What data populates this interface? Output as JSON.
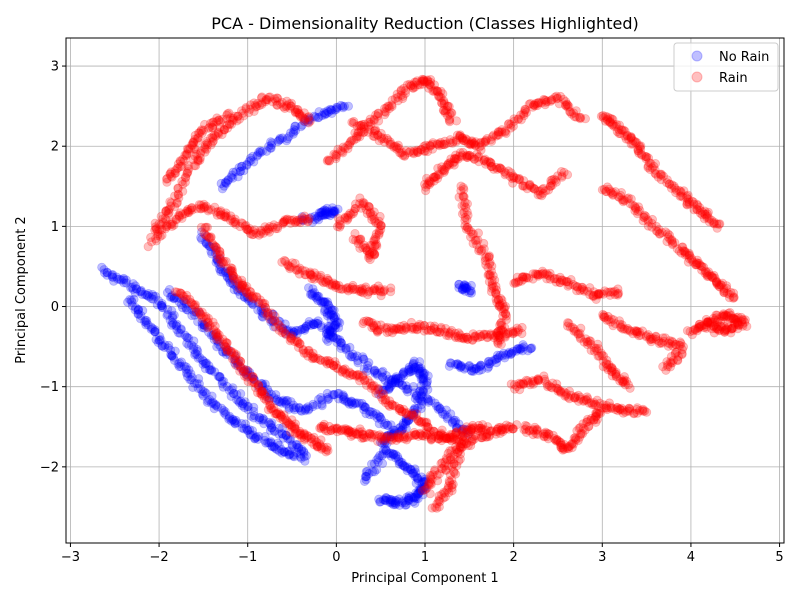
{
  "chart_data": {
    "type": "scatter",
    "title": "PCA - Dimensionality Reduction (Classes Highlighted)",
    "xlabel": "Principal Component 1",
    "ylabel": "Principal Component 2",
    "xlim": [
      -3.05,
      5.05
    ],
    "ylim": [
      -2.95,
      3.35
    ],
    "xticks": [
      -3,
      -2,
      -1,
      0,
      1,
      2,
      3,
      4,
      5
    ],
    "yticks": [
      -2,
      -1,
      0,
      1,
      2,
      3
    ],
    "xtick_labels": [
      "−3",
      "−2",
      "−1",
      "0",
      "1",
      "2",
      "3",
      "4",
      "5"
    ],
    "ytick_labels": [
      "−2",
      "−1",
      "0",
      "1",
      "2",
      "3"
    ],
    "grid": true,
    "legend_position": "top-right",
    "series": [
      {
        "name": "No Rain",
        "color": "#0000ff",
        "alpha": 0.25,
        "paths": [
          [
            [
              -2.65,
              0.45
            ],
            [
              -2.3,
              0.25
            ],
            [
              -2.0,
              0.05
            ],
            [
              -1.75,
              -0.3
            ],
            [
              -1.5,
              -0.7
            ],
            [
              -1.2,
              -1.05
            ],
            [
              -0.9,
              -1.35
            ],
            [
              -0.6,
              -1.6
            ],
            [
              -0.3,
              -1.9
            ]
          ],
          [
            [
              -2.35,
              0.1
            ],
            [
              -2.1,
              -0.25
            ],
            [
              -1.85,
              -0.6
            ],
            [
              -1.6,
              -0.95
            ],
            [
              -1.3,
              -1.3
            ],
            [
              -1.0,
              -1.55
            ],
            [
              -0.7,
              -1.75
            ],
            [
              -0.4,
              -1.9
            ]
          ],
          [
            [
              -1.9,
              0.2
            ],
            [
              -1.6,
              -0.1
            ],
            [
              -1.3,
              -0.5
            ],
            [
              -1.0,
              -0.85
            ],
            [
              -0.7,
              -1.15
            ],
            [
              -0.4,
              -1.3
            ],
            [
              0.0,
              -1.1
            ],
            [
              0.3,
              -1.25
            ],
            [
              0.6,
              -1.5
            ]
          ],
          [
            [
              -1.5,
              0.9
            ],
            [
              -1.3,
              0.5
            ],
            [
              -1.1,
              0.2
            ],
            [
              -0.8,
              -0.1
            ],
            [
              -0.5,
              -0.35
            ],
            [
              -0.2,
              -0.2
            ],
            [
              0.1,
              -0.5
            ],
            [
              0.4,
              -0.8
            ],
            [
              0.8,
              -1.0
            ],
            [
              1.2,
              -1.3
            ],
            [
              1.5,
              -1.6
            ]
          ],
          [
            [
              -1.3,
              1.5
            ],
            [
              -1.0,
              1.8
            ],
            [
              -0.6,
              2.1
            ],
            [
              -0.2,
              2.4
            ],
            [
              0.1,
              2.5
            ]
          ],
          [
            [
              -0.2,
              1.15
            ],
            [
              0.0,
              1.2
            ],
            [
              -0.4,
              1.05
            ]
          ],
          [
            [
              -0.3,
              0.2
            ],
            [
              -0.1,
              0.0
            ],
            [
              0.0,
              -0.2
            ],
            [
              -0.1,
              -0.4
            ]
          ],
          [
            [
              0.5,
              -2.4
            ],
            [
              0.7,
              -2.45
            ],
            [
              0.9,
              -2.4
            ],
            [
              1.0,
              -2.2
            ],
            [
              0.8,
              -2.0
            ],
            [
              0.55,
              -1.8
            ],
            [
              0.3,
              -2.2
            ]
          ],
          [
            [
              0.5,
              -1.7
            ],
            [
              0.7,
              -1.55
            ],
            [
              0.9,
              -1.3
            ],
            [
              1.0,
              -0.9
            ],
            [
              0.9,
              -0.7
            ],
            [
              0.7,
              -0.9
            ],
            [
              0.5,
              -1.1
            ]
          ],
          [
            [
              1.3,
              -0.7
            ],
            [
              1.6,
              -0.8
            ],
            [
              1.9,
              -0.6
            ],
            [
              2.2,
              -0.5
            ]
          ],
          [
            [
              1.4,
              0.25
            ],
            [
              1.5,
              0.2
            ]
          ]
        ]
      },
      {
        "name": "Rain",
        "color": "#ff0000",
        "alpha": 0.25,
        "paths": [
          [
            [
              -2.05,
              0.95
            ],
            [
              -1.85,
              1.3
            ],
            [
              -1.6,
              1.8
            ],
            [
              -1.4,
              2.1
            ],
            [
              -1.1,
              2.35
            ],
            [
              -0.8,
              2.6
            ],
            [
              -0.5,
              2.5
            ],
            [
              -0.3,
              2.3
            ]
          ],
          [
            [
              -2.1,
              0.8
            ],
            [
              -1.8,
              1.1
            ],
            [
              -1.5,
              1.25
            ],
            [
              -1.2,
              1.1
            ],
            [
              -0.9,
              0.9
            ],
            [
              -0.6,
              1.05
            ],
            [
              -0.3,
              1.1
            ]
          ],
          [
            [
              -1.9,
              1.55
            ],
            [
              -1.7,
              1.9
            ],
            [
              -1.5,
              2.2
            ],
            [
              -1.2,
              2.4
            ]
          ],
          [
            [
              -1.8,
              0.2
            ],
            [
              -1.5,
              -0.1
            ],
            [
              -1.3,
              -0.4
            ],
            [
              -1.1,
              -0.7
            ],
            [
              -0.9,
              -1.0
            ],
            [
              -0.7,
              -1.3
            ],
            [
              -0.5,
              -1.5
            ],
            [
              -0.3,
              -1.65
            ],
            [
              -0.1,
              -1.8
            ]
          ],
          [
            [
              -1.5,
              1.0
            ],
            [
              -1.3,
              0.6
            ],
            [
              -1.1,
              0.3
            ],
            [
              -0.9,
              0.1
            ],
            [
              -0.6,
              -0.3
            ],
            [
              -0.3,
              -0.6
            ],
            [
              0.0,
              -0.75
            ],
            [
              0.3,
              -0.9
            ],
            [
              0.6,
              -1.2
            ],
            [
              0.9,
              -1.4
            ],
            [
              1.2,
              -1.6
            ],
            [
              1.5,
              -1.7
            ],
            [
              1.8,
              -1.55
            ],
            [
              2.0,
              -1.5
            ]
          ],
          [
            [
              -0.6,
              0.55
            ],
            [
              -0.3,
              0.4
            ],
            [
              0.0,
              0.25
            ],
            [
              0.3,
              0.2
            ],
            [
              0.6,
              0.2
            ]
          ],
          [
            [
              -0.1,
              1.8
            ],
            [
              0.2,
              2.1
            ],
            [
              0.5,
              2.4
            ],
            [
              0.8,
              2.7
            ],
            [
              1.0,
              2.85
            ],
            [
              1.2,
              2.6
            ],
            [
              1.3,
              2.3
            ]
          ],
          [
            [
              0.2,
              2.3
            ],
            [
              0.5,
              2.1
            ],
            [
              0.8,
              1.9
            ],
            [
              1.1,
              2.0
            ],
            [
              1.4,
              2.1
            ],
            [
              1.6,
              2.0
            ],
            [
              1.9,
              2.2
            ],
            [
              2.2,
              2.5
            ],
            [
              2.5,
              2.6
            ],
            [
              2.8,
              2.3
            ]
          ],
          [
            [
              0.0,
              1.0
            ],
            [
              0.3,
              1.3
            ],
            [
              0.5,
              1.0
            ],
            [
              0.4,
              0.6
            ],
            [
              0.2,
              0.9
            ]
          ],
          [
            [
              0.3,
              -0.2
            ],
            [
              0.6,
              -0.3
            ],
            [
              0.9,
              -0.25
            ],
            [
              1.2,
              -0.3
            ],
            [
              1.5,
              -0.4
            ],
            [
              1.8,
              -0.35
            ],
            [
              2.1,
              -0.3
            ]
          ],
          [
            [
              1.0,
              -2.3
            ],
            [
              1.2,
              -2.0
            ],
            [
              1.4,
              -1.7
            ],
            [
              1.3,
              -2.2
            ],
            [
              1.1,
              -2.55
            ]
          ],
          [
            [
              1.4,
              1.5
            ],
            [
              1.5,
              1.0
            ],
            [
              1.7,
              0.6
            ],
            [
              1.8,
              0.2
            ],
            [
              1.9,
              -0.1
            ],
            [
              1.8,
              -0.5
            ]
          ],
          [
            [
              1.0,
              1.5
            ],
            [
              1.2,
              1.7
            ],
            [
              1.4,
              1.9
            ],
            [
              1.7,
              1.8
            ],
            [
              2.0,
              1.6
            ],
            [
              2.3,
              1.4
            ],
            [
              2.6,
              1.7
            ]
          ],
          [
            [
              2.0,
              0.3
            ],
            [
              2.3,
              0.4
            ],
            [
              2.6,
              0.3
            ],
            [
              2.9,
              0.15
            ],
            [
              3.2,
              0.2
            ]
          ],
          [
            [
              2.0,
              -1.0
            ],
            [
              2.3,
              -0.9
            ],
            [
              2.6,
              -1.1
            ],
            [
              2.9,
              -1.2
            ],
            [
              3.2,
              -1.3
            ],
            [
              3.5,
              -1.3
            ]
          ],
          [
            [
              2.1,
              -1.5
            ],
            [
              2.4,
              -1.6
            ],
            [
              2.6,
              -1.8
            ],
            [
              2.8,
              -1.5
            ],
            [
              3.0,
              -1.3
            ]
          ],
          [
            [
              3.0,
              2.4
            ],
            [
              3.2,
              2.2
            ],
            [
              3.4,
              2.0
            ],
            [
              3.6,
              1.7
            ],
            [
              3.9,
              1.4
            ],
            [
              4.1,
              1.2
            ],
            [
              4.3,
              1.0
            ]
          ],
          [
            [
              3.0,
              1.5
            ],
            [
              3.3,
              1.3
            ],
            [
              3.6,
              1.0
            ],
            [
              3.9,
              0.7
            ],
            [
              4.1,
              0.5
            ],
            [
              4.3,
              0.3
            ],
            [
              4.5,
              0.1
            ]
          ],
          [
            [
              4.0,
              -0.3
            ],
            [
              4.2,
              -0.2
            ],
            [
              4.4,
              -0.1
            ],
            [
              4.6,
              -0.2
            ],
            [
              4.4,
              -0.3
            ],
            [
              4.2,
              -0.25
            ]
          ],
          [
            [
              3.0,
              -0.1
            ],
            [
              3.3,
              -0.3
            ],
            [
              3.6,
              -0.4
            ],
            [
              3.9,
              -0.5
            ],
            [
              3.7,
              -0.8
            ]
          ],
          [
            [
              2.6,
              -0.2
            ],
            [
              2.9,
              -0.5
            ],
            [
              3.1,
              -0.8
            ],
            [
              3.3,
              -1.0
            ]
          ],
          [
            [
              -0.2,
              -1.5
            ],
            [
              0.1,
              -1.55
            ],
            [
              0.3,
              -1.6
            ],
            [
              0.6,
              -1.65
            ],
            [
              0.9,
              -1.6
            ],
            [
              1.2,
              -1.65
            ],
            [
              1.5,
              -1.55
            ],
            [
              1.7,
              -1.5
            ]
          ]
        ]
      }
    ]
  }
}
